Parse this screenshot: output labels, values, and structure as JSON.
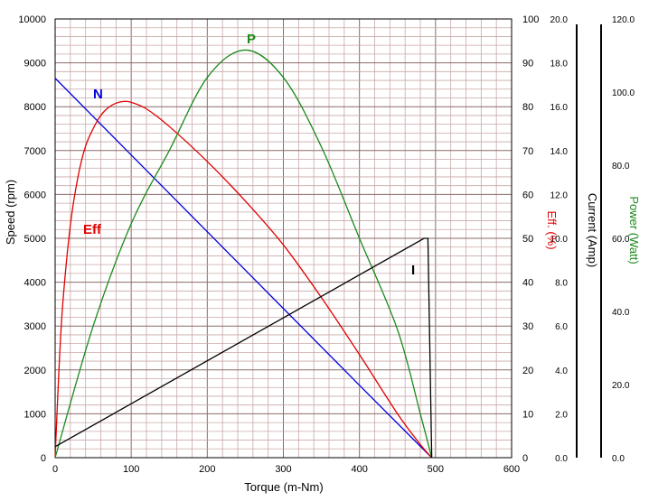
{
  "chart_data": {
    "type": "line",
    "xlabel": "Torque (m-Nm)",
    "x_ticks": [
      "0",
      "100",
      "200",
      "300",
      "400",
      "500",
      "600"
    ],
    "xlim": [
      0,
      600
    ],
    "axes": [
      {
        "id": "speed",
        "label": "Speed (rpm)",
        "range": [
          0,
          10000
        ],
        "ticks": [
          "0",
          "1000",
          "2000",
          "3000",
          "4000",
          "5000",
          "6000",
          "7000",
          "8000",
          "9000",
          "10000"
        ],
        "color": "#000000"
      },
      {
        "id": "eff",
        "label": "Eff. (%)",
        "range": [
          0,
          100
        ],
        "ticks": [
          "0",
          "10",
          "20",
          "30",
          "40",
          "50",
          "60",
          "70",
          "80",
          "90",
          "100"
        ],
        "color": "#e00000"
      },
      {
        "id": "current",
        "label": "Current (Amp)",
        "range": [
          0,
          20
        ],
        "ticks": [
          "0.0",
          "2.0",
          "4.0",
          "6.0",
          "8.0",
          "10.0",
          "12.0",
          "14.0",
          "16.0",
          "18.0",
          "20.0"
        ],
        "color": "#000000"
      },
      {
        "id": "power",
        "label": "Power (Watt)",
        "range": [
          0,
          120
        ],
        "ticks": [
          "0.0",
          "20.0",
          "40.0",
          "60.0",
          "80.0",
          "100.0",
          "120.0"
        ],
        "color": "#1a8a1a"
      }
    ],
    "series": [
      {
        "name": "N",
        "axis": "speed",
        "color": "#0000dd",
        "x": [
          0,
          100,
          200,
          300,
          400,
          495
        ],
        "y": [
          8650,
          6900,
          5150,
          3400,
          1650,
          0
        ]
      },
      {
        "name": "Eff",
        "axis": "eff",
        "color": "#e00000",
        "x": [
          0,
          5,
          10,
          20,
          30,
          40,
          50,
          60,
          70,
          80,
          90,
          100,
          120,
          150,
          200,
          250,
          300,
          350,
          400,
          450,
          480,
          495
        ],
        "y": [
          0,
          20,
          35,
          53,
          64,
          71,
          75,
          78,
          79.8,
          80.8,
          81.2,
          81,
          79.5,
          75.5,
          67.5,
          58.5,
          48.5,
          36.5,
          23.5,
          10,
          3,
          0
        ]
      },
      {
        "name": "P",
        "axis": "power",
        "color": "#1a8a1a",
        "x": [
          0,
          50,
          100,
          150,
          200,
          250,
          300,
          350,
          400,
          450,
          480,
          495
        ],
        "y": [
          0,
          36,
          64,
          84,
          104,
          111.5,
          104,
          85,
          60,
          35,
          12,
          0
        ]
      },
      {
        "name": "I",
        "axis": "current",
        "color": "#000000",
        "x": [
          0,
          485,
          490,
          495
        ],
        "y": [
          0.5,
          10.0,
          10.0,
          0
        ]
      }
    ],
    "grid": true
  }
}
